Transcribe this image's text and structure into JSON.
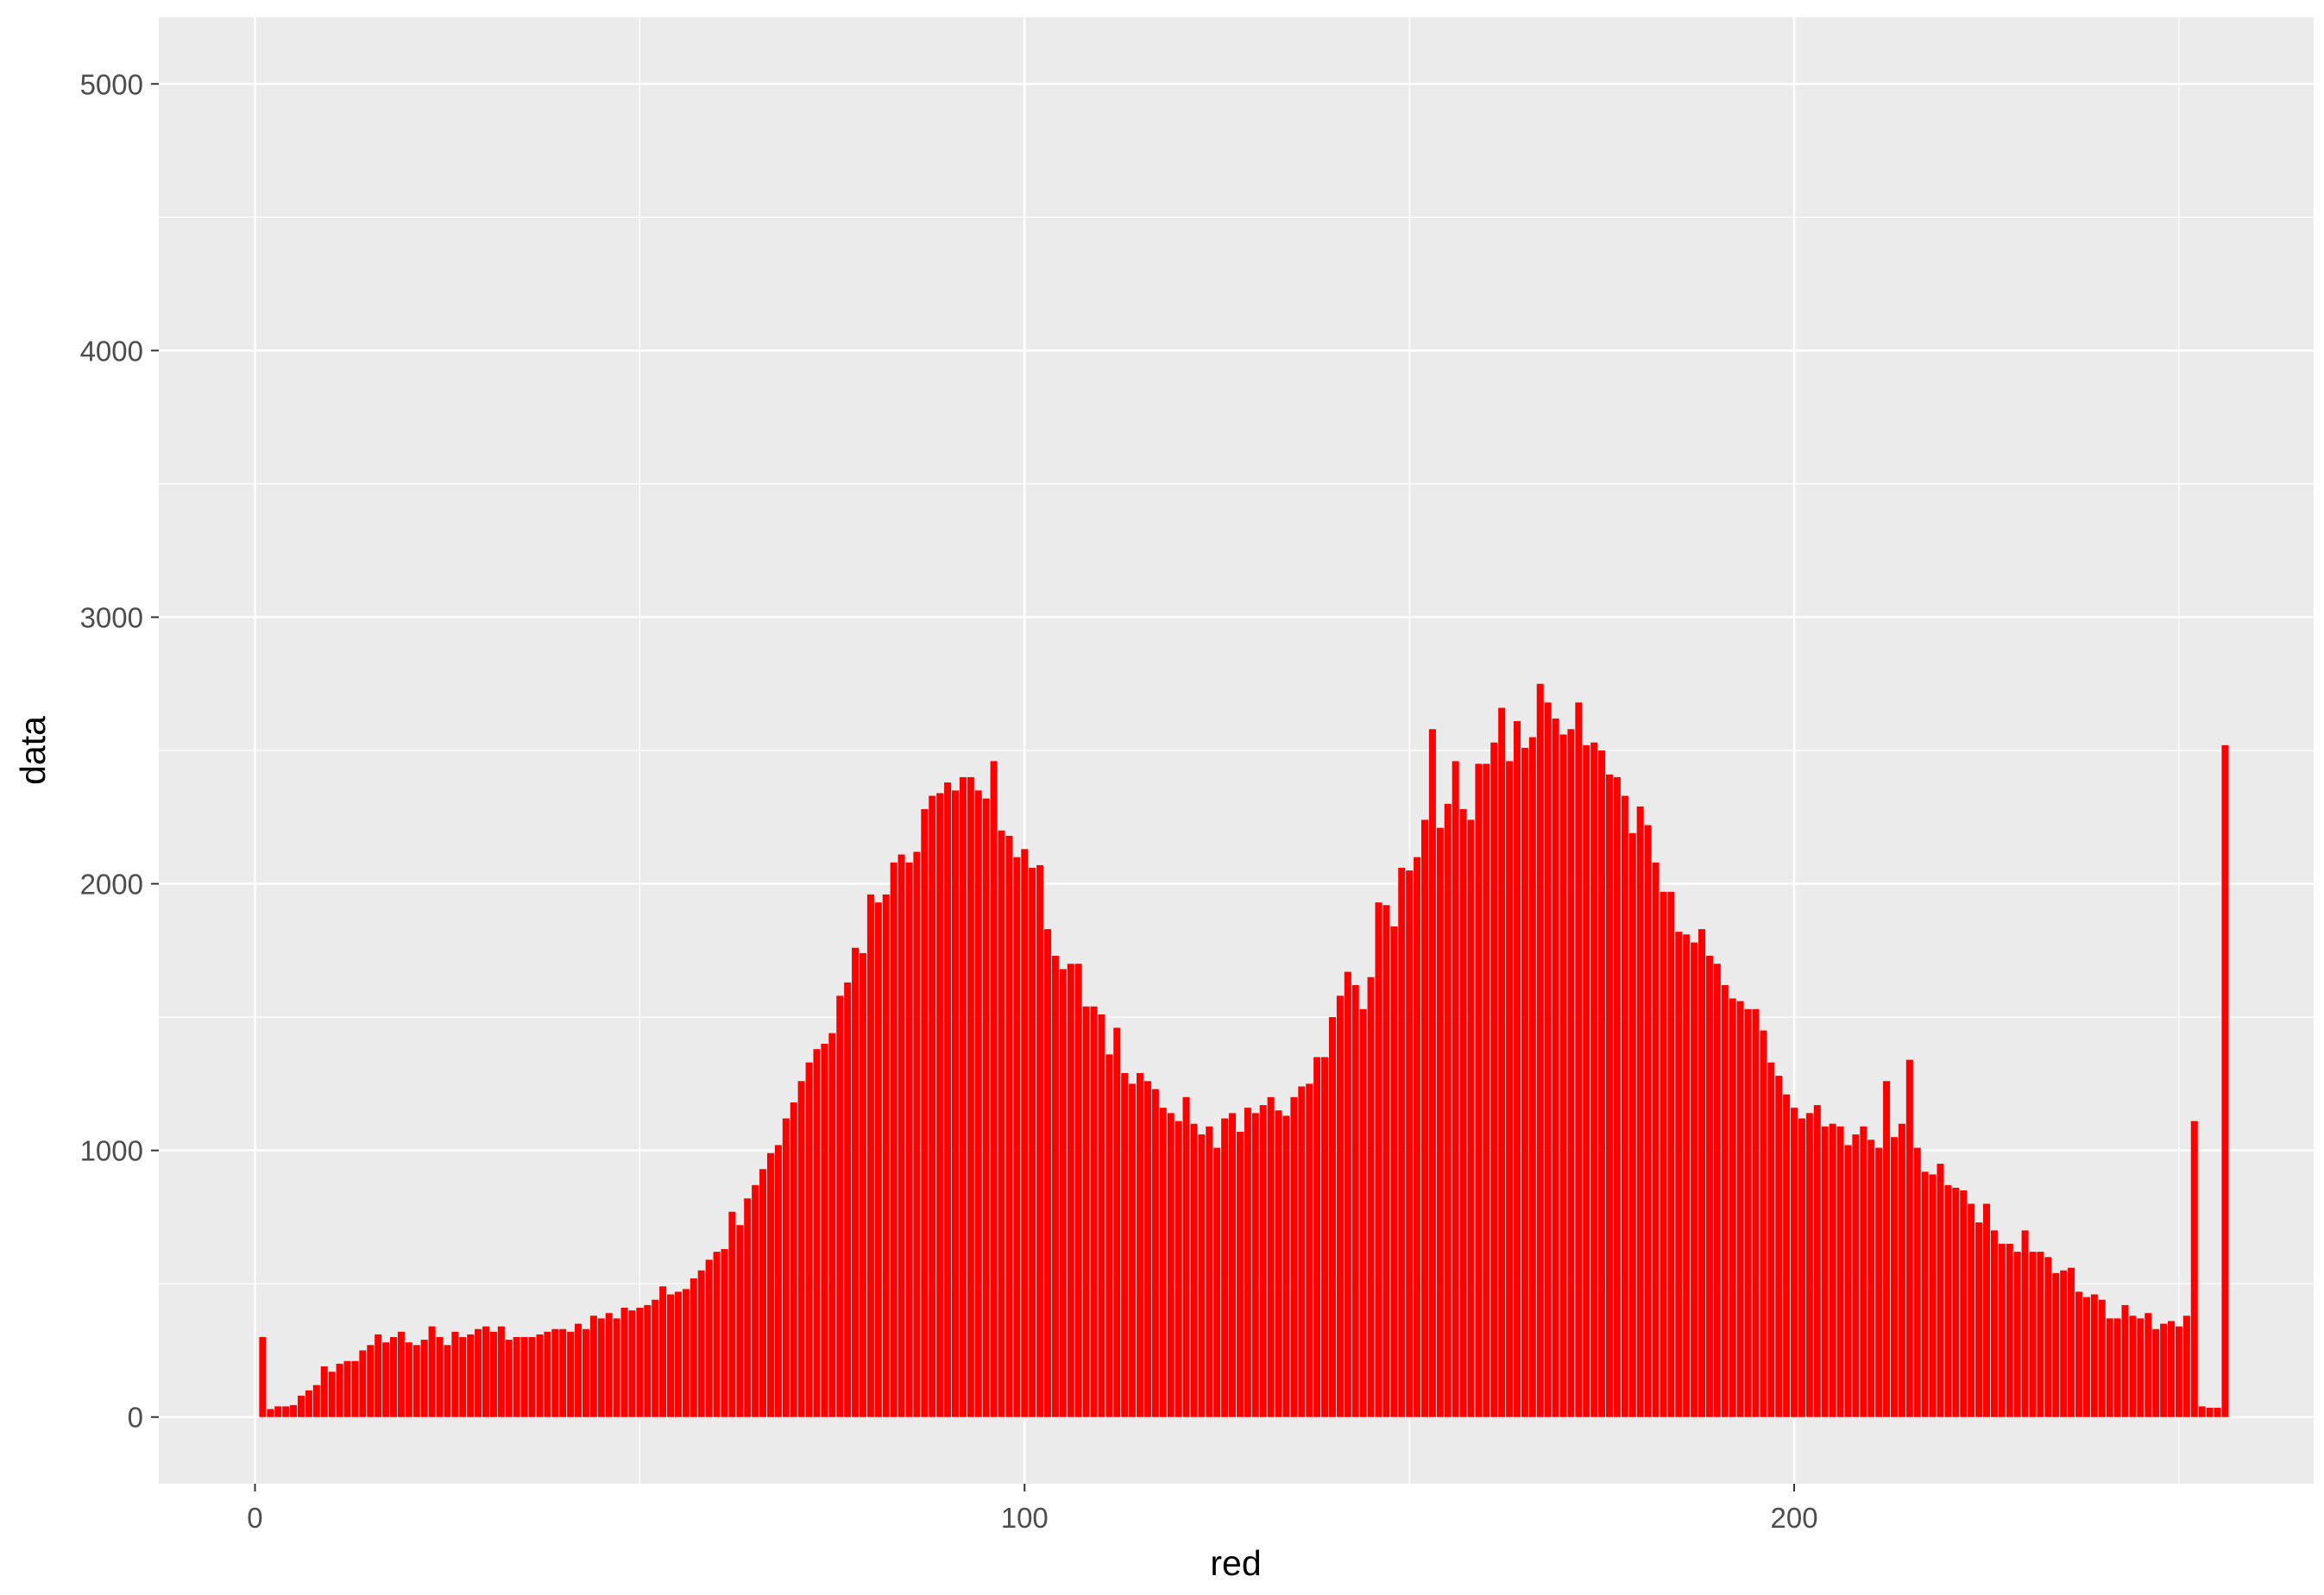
{
  "chart_data": {
    "type": "bar",
    "title": "",
    "xlabel": "red",
    "ylabel": "data",
    "xlim": [
      -12.5,
      267.5
    ],
    "ylim": [
      -250,
      5250
    ],
    "x_ticks": [
      0,
      100,
      200
    ],
    "y_ticks": [
      0,
      1000,
      2000,
      3000,
      4000,
      5000
    ],
    "grid": true,
    "panel_background": "#ebebeb",
    "grid_color": "#ffffff",
    "bar_color": "#ff0000",
    "x": [
      1,
      2,
      3,
      4,
      5,
      6,
      7,
      8,
      9,
      10,
      11,
      12,
      13,
      14,
      15,
      16,
      17,
      18,
      19,
      20,
      21,
      22,
      23,
      24,
      25,
      26,
      27,
      28,
      29,
      30,
      31,
      32,
      33,
      34,
      35,
      36,
      37,
      38,
      39,
      40,
      41,
      42,
      43,
      44,
      45,
      46,
      47,
      48,
      49,
      50,
      51,
      52,
      53,
      54,
      55,
      56,
      57,
      58,
      59,
      60,
      61,
      62,
      63,
      64,
      65,
      66,
      67,
      68,
      69,
      70,
      71,
      72,
      73,
      74,
      75,
      76,
      77,
      78,
      79,
      80,
      81,
      82,
      83,
      84,
      85,
      86,
      87,
      88,
      89,
      90,
      91,
      92,
      93,
      94,
      95,
      96,
      97,
      98,
      99,
      100,
      101,
      102,
      103,
      104,
      105,
      106,
      107,
      108,
      109,
      110,
      111,
      112,
      113,
      114,
      115,
      116,
      117,
      118,
      119,
      120,
      121,
      122,
      123,
      124,
      125,
      126,
      127,
      128,
      129,
      130,
      131,
      132,
      133,
      134,
      135,
      136,
      137,
      138,
      139,
      140,
      141,
      142,
      143,
      144,
      145,
      146,
      147,
      148,
      149,
      150,
      151,
      152,
      153,
      154,
      155,
      156,
      157,
      158,
      159,
      160,
      161,
      162,
      163,
      164,
      165,
      166,
      167,
      168,
      169,
      170,
      171,
      172,
      173,
      174,
      175,
      176,
      177,
      178,
      179,
      180,
      181,
      182,
      183,
      184,
      185,
      186,
      187,
      188,
      189,
      190,
      191,
      192,
      193,
      194,
      195,
      196,
      197,
      198,
      199,
      200,
      201,
      202,
      203,
      204,
      205,
      206,
      207,
      208,
      209,
      210,
      211,
      212,
      213,
      214,
      215,
      216,
      217,
      218,
      219,
      220,
      221,
      222,
      223,
      224,
      225,
      226,
      227,
      228,
      229,
      230,
      231,
      232,
      233,
      234,
      235,
      236,
      237,
      238,
      239,
      240,
      241,
      242,
      243,
      244,
      245,
      246,
      247,
      248,
      249,
      250,
      251,
      252,
      253,
      254,
      255,
      256
    ],
    "values": [
      300,
      30,
      40,
      40,
      45,
      80,
      100,
      120,
      190,
      170,
      200,
      210,
      210,
      250,
      270,
      310,
      280,
      300,
      320,
      280,
      270,
      290,
      340,
      300,
      270,
      320,
      300,
      310,
      330,
      340,
      320,
      340,
      290,
      300,
      300,
      300,
      310,
      320,
      330,
      330,
      320,
      350,
      330,
      380,
      370,
      390,
      370,
      410,
      400,
      410,
      420,
      440,
      490,
      460,
      470,
      480,
      520,
      550,
      590,
      620,
      630,
      770,
      720,
      820,
      870,
      930,
      990,
      1020,
      1120,
      1180,
      1260,
      1330,
      1380,
      1400,
      1440,
      1580,
      1630,
      1760,
      1740,
      1960,
      1930,
      1960,
      2080,
      2110,
      2080,
      2120,
      2280,
      2330,
      2340,
      2380,
      2350,
      2400,
      2400,
      2350,
      2320,
      2460,
      2200,
      2180,
      2100,
      2130,
      2060,
      2070,
      1830,
      1730,
      1680,
      1700,
      1700,
      1540,
      1540,
      1510,
      1360,
      1460,
      1290,
      1250,
      1290,
      1260,
      1230,
      1160,
      1140,
      1110,
      1200,
      1100,
      1060,
      1090,
      1010,
      1120,
      1140,
      1070,
      1160,
      1140,
      1170,
      1200,
      1150,
      1130,
      1200,
      1240,
      1250,
      1350,
      1350,
      1500,
      1580,
      1670,
      1620,
      1530,
      1650,
      1930,
      1920,
      1840,
      2060,
      2050,
      2100,
      2240,
      2580,
      2210,
      2300,
      2460,
      2280,
      2240,
      2450,
      2450,
      2530,
      2660,
      2460,
      2610,
      2510,
      2550,
      2750,
      2680,
      2620,
      2560,
      2580,
      2680,
      2520,
      2530,
      2500,
      2410,
      2400,
      2330,
      2190,
      2290,
      2220,
      2080,
      1970,
      1970,
      1820,
      1810,
      1780,
      1830,
      1730,
      1700,
      1620,
      1570,
      1560,
      1530,
      1530,
      1450,
      1330,
      1280,
      1210,
      1160,
      1120,
      1140,
      1170,
      1090,
      1100,
      1090,
      1020,
      1060,
      1090,
      1040,
      1010,
      1260,
      1050,
      1100,
      1340,
      1010,
      920,
      910,
      950,
      870,
      860,
      850,
      800,
      730,
      800,
      700,
      650,
      650,
      620,
      700,
      620,
      620,
      600,
      540,
      550,
      560,
      470,
      450,
      460,
      440,
      370,
      370,
      420,
      380,
      370,
      390,
      330,
      350,
      360,
      340,
      380,
      1110,
      40,
      35,
      35,
      2520
    ]
  }
}
